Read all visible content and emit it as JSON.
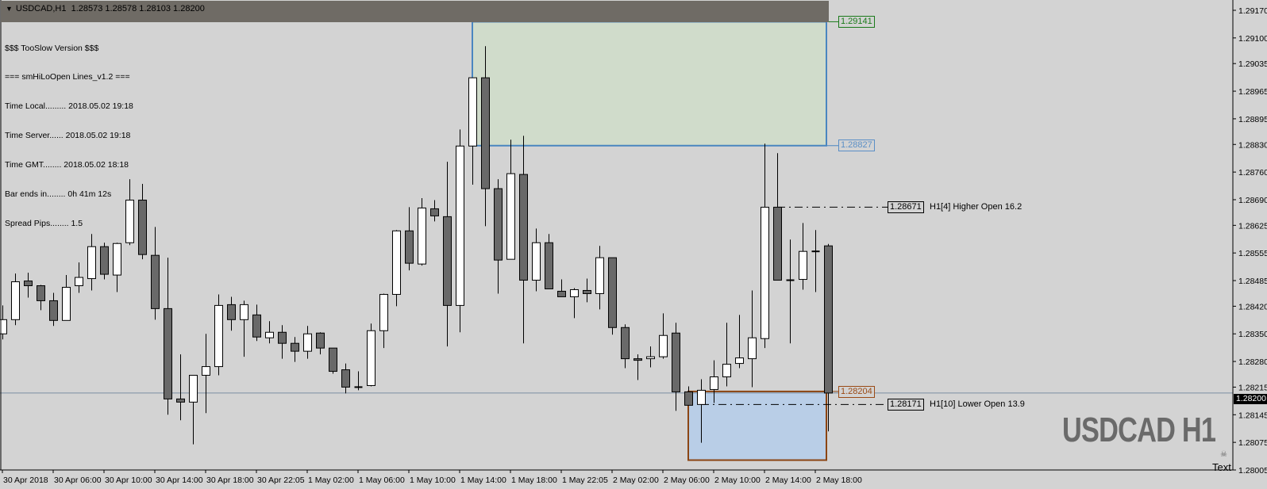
{
  "header": {
    "title": "USDCAD,H1  1.28573 1.28578 1.28103 1.28200",
    "menu_icon": "triangle-down-icon"
  },
  "info_panel": {
    "lines": [
      "$$$ TooSlow Version $$$",
      "=== smHiLoOpen Lines_v1.2 ===",
      "Time Local......... 2018.05.02 19:18",
      "Time Server...... 2018.05.02 19:18",
      "Time GMT........ 2018.05.02 18:18",
      "Bar ends in........ 0h 41m 12s",
      "Spread Pips........ 1.5"
    ]
  },
  "levels": {
    "range_high": "1.29141",
    "range_mid": "1.28827",
    "range_low_label": "1.28204",
    "higher_open_price": "1.28671",
    "higher_open_text": "H1[4] Higher Open 16.2",
    "lower_open_price": "1.28171",
    "lower_open_text": "H1[10] Lower Open 13.9"
  },
  "current_price": "1.28200",
  "watermark": "USDCAD H1",
  "text_object": "Text",
  "text_object_icon": "skull-icon",
  "colors": {
    "background": "#d3d3d3",
    "bear_body": "#696969",
    "bull_body": "#ffffff",
    "candle_outline": "#000000",
    "upper_box_fill": "#d0dccb",
    "upper_box_border": "#4a86c0",
    "lower_box_fill": "#b9cee7",
    "lower_box_border": "#8b4513",
    "bid_line": "#7a8ea3"
  },
  "chart_data": {
    "type": "candlestick",
    "symbol": "USDCAD",
    "timeframe": "H1",
    "ylim": [
      1.28005,
      1.2917
    ],
    "grid": false,
    "y_ticks": [
      "1.29170",
      "1.29100",
      "1.29035",
      "1.28965",
      "1.28895",
      "1.28830",
      "1.28760",
      "1.28690",
      "1.28625",
      "1.28555",
      "1.28485",
      "1.28420",
      "1.28350",
      "1.28280",
      "1.28215",
      "1.28145",
      "1.28075",
      "1.28005"
    ],
    "x_ticks": [
      "30 Apr 2018",
      "30 Apr 06:00",
      "30 Apr 10:00",
      "30 Apr 14:00",
      "30 Apr 18:00",
      "30 Apr 22:05",
      "1 May 02:00",
      "1 May 06:00",
      "1 May 10:00",
      "1 May 14:00",
      "1 May 18:00",
      "1 May 22:05",
      "2 May 02:00",
      "2 May 06:00",
      "2 May 10:00",
      "2 May 14:00",
      "2 May 18:00"
    ],
    "columns": [
      "time",
      "open",
      "high",
      "low",
      "close"
    ],
    "candles": [
      [
        "30 Apr 02:00",
        1.2835,
        1.28422,
        1.28336,
        1.28386
      ],
      [
        "30 Apr 03:00",
        1.28386,
        1.28503,
        1.28372,
        1.28482
      ],
      [
        "30 Apr 04:00",
        1.28484,
        1.28505,
        1.28442,
        1.28472
      ],
      [
        "30 Apr 05:00",
        1.28472,
        1.28474,
        1.2841,
        1.28434
      ],
      [
        "30 Apr 06:00",
        1.28434,
        1.28454,
        1.2837,
        1.28384
      ],
      [
        "30 Apr 07:00",
        1.28384,
        1.28499,
        1.28384,
        1.28468
      ],
      [
        "30 Apr 08:00",
        1.28472,
        1.28531,
        1.28454,
        1.28493
      ],
      [
        "30 Apr 09:00",
        1.2849,
        1.28603,
        1.2846,
        1.28571
      ],
      [
        "30 Apr 10:00",
        1.28571,
        1.28581,
        1.28488,
        1.28501
      ],
      [
        "30 Apr 11:00",
        1.28499,
        1.28581,
        1.28456,
        1.28579
      ],
      [
        "30 Apr 12:00",
        1.28581,
        1.28742,
        1.28575,
        1.28689
      ],
      [
        "30 Apr 13:00",
        1.28689,
        1.2873,
        1.28539,
        1.28551
      ],
      [
        "30 Apr 14:00",
        1.28549,
        1.28621,
        1.28386,
        1.28414
      ],
      [
        "30 Apr 15:00",
        1.28414,
        1.28543,
        1.28145,
        1.28185
      ],
      [
        "30 Apr 16:00",
        1.28185,
        1.28298,
        1.28131,
        1.28177
      ],
      [
        "30 Apr 17:00",
        1.28177,
        1.28245,
        1.2807,
        1.28245
      ],
      [
        "30 Apr 18:00",
        1.28245,
        1.2835,
        1.28149,
        1.28267
      ],
      [
        "30 Apr 19:00",
        1.28267,
        1.2845,
        1.28245,
        1.28422
      ],
      [
        "30 Apr 20:00",
        1.28424,
        1.28444,
        1.28358,
        1.28386
      ],
      [
        "30 Apr 21:00",
        1.28386,
        1.28434,
        1.28292,
        1.28424
      ],
      [
        "30 Apr 22:00",
        1.28398,
        1.28424,
        1.28332,
        1.28342
      ],
      [
        "30 Apr 23:00",
        1.2834,
        1.28382,
        1.28326,
        1.28354
      ],
      [
        "1 May 00:00",
        1.28354,
        1.28372,
        1.28287,
        1.28326
      ],
      [
        "1 May 01:00",
        1.28326,
        1.28342,
        1.28279,
        1.28306
      ],
      [
        "1 May 02:00",
        1.28306,
        1.2837,
        1.28287,
        1.2835
      ],
      [
        "1 May 03:00",
        1.28352,
        1.28354,
        1.28298,
        1.28314
      ],
      [
        "1 May 04:00",
        1.28314,
        1.28314,
        1.28249,
        1.28255
      ],
      [
        "1 May 05:00",
        1.28259,
        1.28275,
        1.28199,
        1.28215
      ],
      [
        "1 May 06:00",
        1.28215,
        1.28255,
        1.28207,
        1.28215
      ],
      [
        "1 May 07:00",
        1.28219,
        1.28376,
        1.28217,
        1.28358
      ],
      [
        "1 May 08:00",
        1.28358,
        1.28452,
        1.28314,
        1.2845
      ],
      [
        "1 May 09:00",
        1.2845,
        1.28613,
        1.2842,
        1.28611
      ],
      [
        "1 May 10:00",
        1.28611,
        1.28671,
        1.28511,
        1.28529
      ],
      [
        "1 May 11:00",
        1.28527,
        1.28694,
        1.28523,
        1.28669
      ],
      [
        "1 May 12:00",
        1.28667,
        1.28689,
        1.28635,
        1.28649
      ],
      [
        "1 May 13:00",
        1.28647,
        1.28786,
        1.28318,
        1.28422
      ],
      [
        "1 May 14:00",
        1.28422,
        1.28868,
        1.28354,
        1.28826
      ],
      [
        "1 May 15:00",
        1.28826,
        1.28999,
        1.28728,
        1.28999
      ],
      [
        "1 May 16:00",
        1.28999,
        1.29079,
        1.28623,
        1.28718
      ],
      [
        "1 May 17:00",
        1.28718,
        1.28742,
        1.28452,
        1.28537
      ],
      [
        "1 May 18:00",
        1.28539,
        1.28842,
        1.28539,
        1.28756
      ],
      [
        "1 May 19:00",
        1.28754,
        1.28852,
        1.28326,
        1.28486
      ],
      [
        "1 May 20:00",
        1.28486,
        1.28617,
        1.28458,
        1.28581
      ],
      [
        "1 May 21:00",
        1.28581,
        1.28603,
        1.28464,
        1.28464
      ],
      [
        "1 May 22:00",
        1.28458,
        1.28488,
        1.28444,
        1.28444
      ],
      [
        "1 May 23:00",
        1.28444,
        1.28466,
        1.2839,
        1.28462
      ],
      [
        "2 May 00:00",
        1.2846,
        1.2849,
        1.2843,
        1.28452
      ],
      [
        "2 May 01:00",
        1.28452,
        1.28573,
        1.28412,
        1.28543
      ],
      [
        "2 May 02:00",
        1.28543,
        1.28543,
        1.28348,
        1.28366
      ],
      [
        "2 May 03:00",
        1.28366,
        1.28374,
        1.28263,
        1.28287
      ],
      [
        "2 May 04:00",
        1.28287,
        1.28298,
        1.28233,
        1.28283
      ],
      [
        "2 May 05:00",
        1.28287,
        1.28318,
        1.28265,
        1.28292
      ],
      [
        "2 May 06:00",
        1.28292,
        1.28402,
        1.28287,
        1.28346
      ],
      [
        "2 May 07:00",
        1.28352,
        1.28378,
        1.28155,
        1.28203
      ],
      [
        "2 May 08:00",
        1.28203,
        1.28217,
        1.28169,
        1.28169
      ],
      [
        "2 May 09:00",
        1.28171,
        1.28235,
        1.28074,
        1.28207
      ],
      [
        "2 May 10:00",
        1.28209,
        1.28283,
        1.28175,
        1.28241
      ],
      [
        "2 May 11:00",
        1.28241,
        1.28378,
        1.28217,
        1.28273
      ],
      [
        "2 May 12:00",
        1.28275,
        1.28398,
        1.28263,
        1.28289
      ],
      [
        "2 May 13:00",
        1.28287,
        1.2846,
        1.28215,
        1.2834
      ],
      [
        "2 May 14:00",
        1.28338,
        1.28832,
        1.28314,
        1.28671
      ],
      [
        "2 May 15:00",
        1.28671,
        1.28808,
        1.28486,
        1.28486
      ],
      [
        "2 May 16:00",
        1.28486,
        1.28589,
        1.28326,
        1.28486
      ],
      [
        "2 May 17:00",
        1.28488,
        1.28631,
        1.28462,
        1.28559
      ],
      [
        "2 May 18:00",
        1.28559,
        1.28613,
        1.28456,
        1.28559
      ],
      [
        "2 May 19:00",
        1.28573,
        1.28578,
        1.28103,
        1.282
      ]
    ],
    "boxes": [
      {
        "from": "1 May 15:00",
        "to": "2 May 19:00",
        "top": 1.29141,
        "bottom": 1.28827,
        "style": "upper"
      },
      {
        "from": "2 May 08:00",
        "to": "2 May 19:00",
        "top": 1.28204,
        "bottom": 1.2803,
        "style": "lower"
      }
    ],
    "open_lines": [
      {
        "from": "2 May 15:00",
        "price": 1.28671
      },
      {
        "from": "2 May 09:00",
        "price": 1.28171
      }
    ]
  }
}
